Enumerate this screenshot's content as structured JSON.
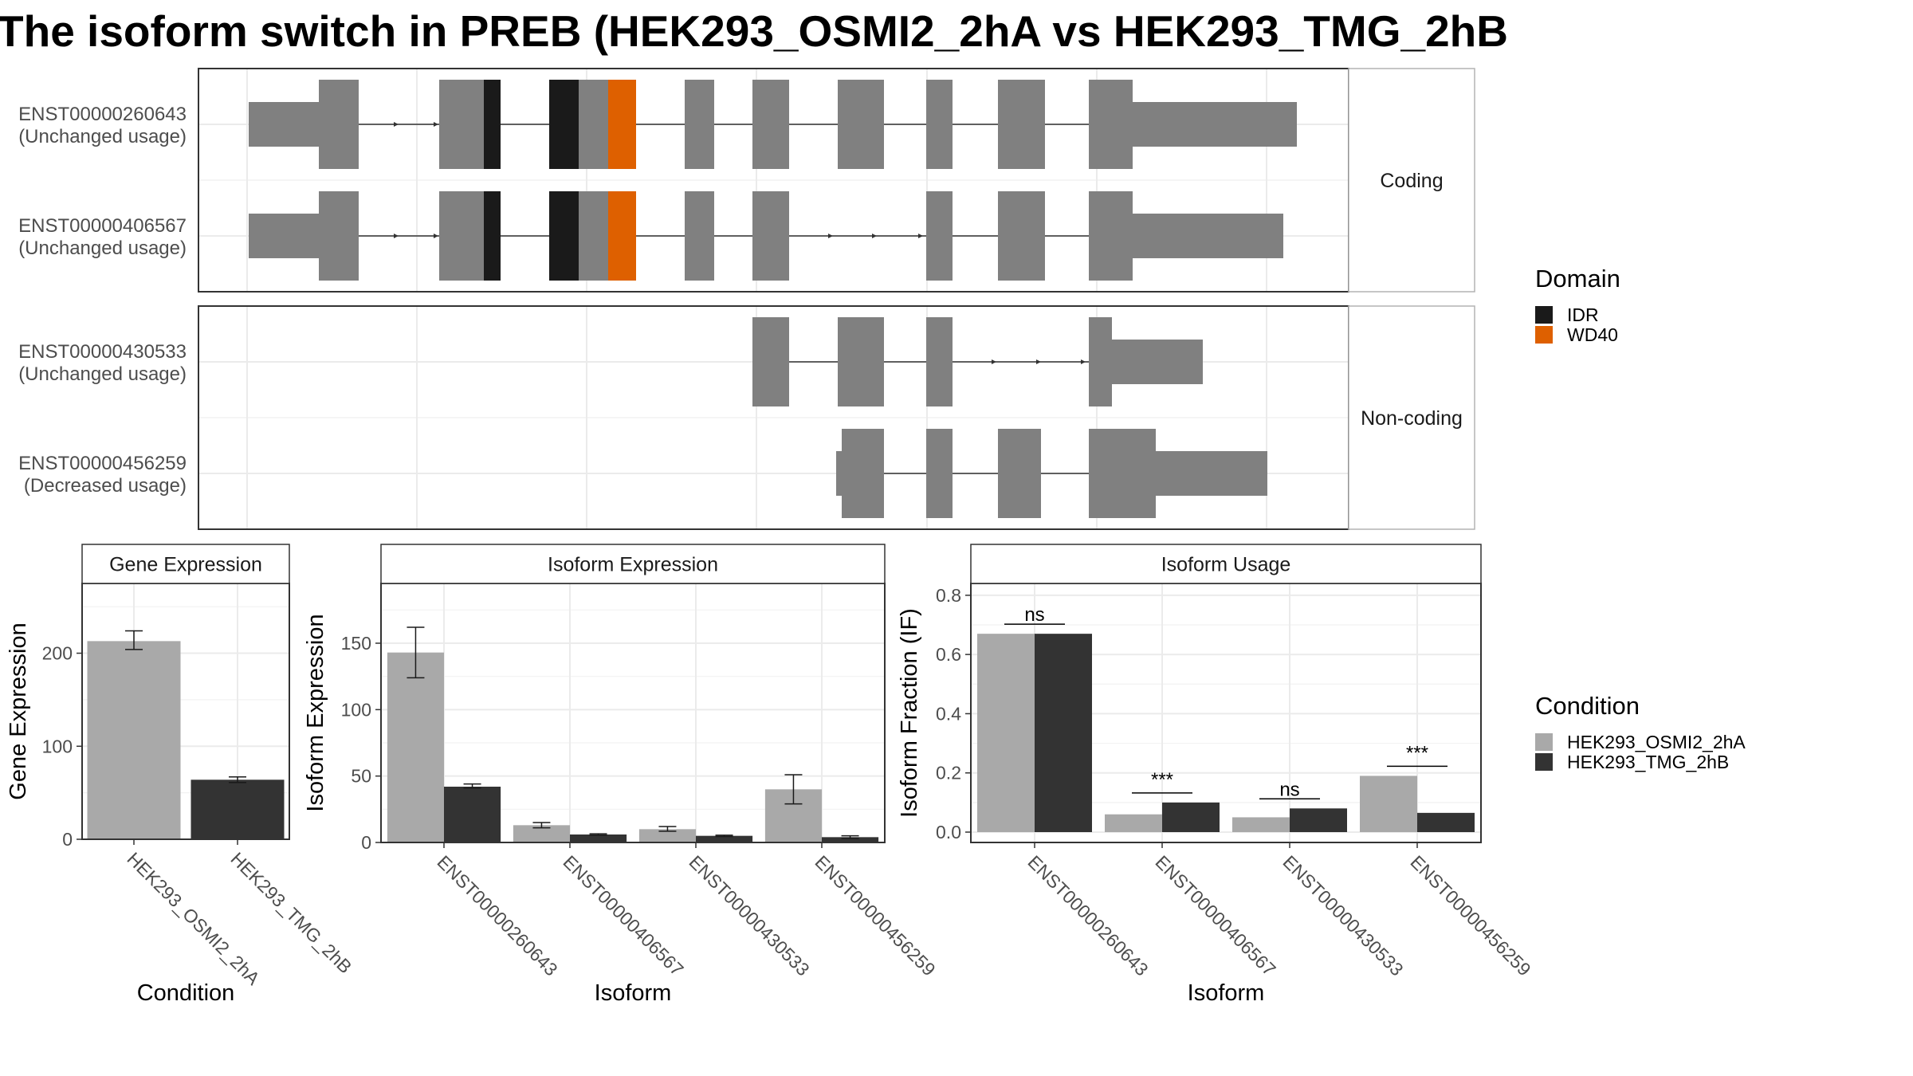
{
  "title": "The isoform switch in PREB (HEK293_OSMI2_2hA vs HEK293_TMG_2hB",
  "colors": {
    "exon": "#808080",
    "idr": "#1a1a1a",
    "wd40": "#de6000",
    "cond_a": "#a9a9a9",
    "cond_b": "#333333"
  },
  "legend_domain": {
    "title": "Domain",
    "items": [
      {
        "label": "IDR",
        "color": "#1a1a1a"
      },
      {
        "label": "WD40",
        "color": "#de6000"
      }
    ]
  },
  "legend_condition": {
    "title": "Condition",
    "items": [
      {
        "label": "HEK293_OSMI2_2hA",
        "color": "#a9a9a9"
      },
      {
        "label": "HEK293_TMG_2hB",
        "color": "#333333"
      }
    ]
  },
  "structure": {
    "groups": [
      {
        "strip": "Coding",
        "isoforms": [
          {
            "id": "ENST00000260643",
            "status": "(Unchanged usage)"
          },
          {
            "id": "ENST00000406567",
            "status": "(Unchanged usage)"
          }
        ]
      },
      {
        "strip": "Non-coding",
        "isoforms": [
          {
            "id": "ENST00000430533",
            "status": "(Unchanged usage)"
          },
          {
            "id": "ENST00000456259",
            "status": "(Decreased usage)"
          }
        ]
      }
    ]
  },
  "chart_data": [
    {
      "type": "bar",
      "strip": "Gene Expression",
      "xlabel": "Condition",
      "ylabel": "Gene Expression",
      "categories": [
        "HEK293_OSMI2_2hA",
        "HEK293_TMG_2hB"
      ],
      "values": [
        213,
        64
      ],
      "errors": [
        [
          204,
          224
        ],
        [
          61,
          67
        ]
      ],
      "ylim": [
        0,
        275
      ],
      "yticks": [
        0,
        100,
        200
      ]
    },
    {
      "type": "bar",
      "strip": "Isoform Expression",
      "xlabel": "Isoform",
      "ylabel": "Isoform Expression",
      "categories": [
        "ENST00000260643",
        "ENST00000406567",
        "ENST00000430533",
        "ENST00000456259"
      ],
      "series": [
        {
          "name": "HEK293_OSMI2_2hA",
          "values": [
            143,
            13,
            10,
            40
          ],
          "errors": [
            [
              124,
              162
            ],
            [
              11,
              15
            ],
            [
              8.5,
              12
            ],
            [
              29,
              51
            ]
          ]
        },
        {
          "name": "HEK293_TMG_2hB",
          "values": [
            42,
            6,
            5,
            4
          ],
          "errors": [
            [
              41,
              44
            ],
            [
              5.5,
              6.5
            ],
            [
              4.5,
              5.5
            ],
            [
              3,
              5
            ]
          ]
        }
      ],
      "ylim": [
        0,
        195
      ],
      "yticks": [
        0,
        50,
        100,
        150
      ]
    },
    {
      "type": "bar",
      "strip": "Isoform Usage",
      "xlabel": "Isoform",
      "ylabel": "Isoform Fraction (IF)",
      "categories": [
        "ENST00000260643",
        "ENST00000406567",
        "ENST00000430533",
        "ENST00000456259"
      ],
      "series": [
        {
          "name": "HEK293_OSMI2_2hA",
          "values": [
            0.67,
            0.06,
            0.05,
            0.19
          ]
        },
        {
          "name": "HEK293_TMG_2hB",
          "values": [
            0.67,
            0.1,
            0.08,
            0.065
          ]
        }
      ],
      "significance": [
        "ns",
        "***",
        "ns",
        "***"
      ],
      "ylim": [
        -0.035,
        0.84
      ],
      "yticks": [
        0.0,
        0.2,
        0.4,
        0.6,
        0.8
      ],
      "yticklabels": [
        "0.0",
        "0.2",
        "0.4",
        "0.6",
        "0.8"
      ]
    }
  ]
}
